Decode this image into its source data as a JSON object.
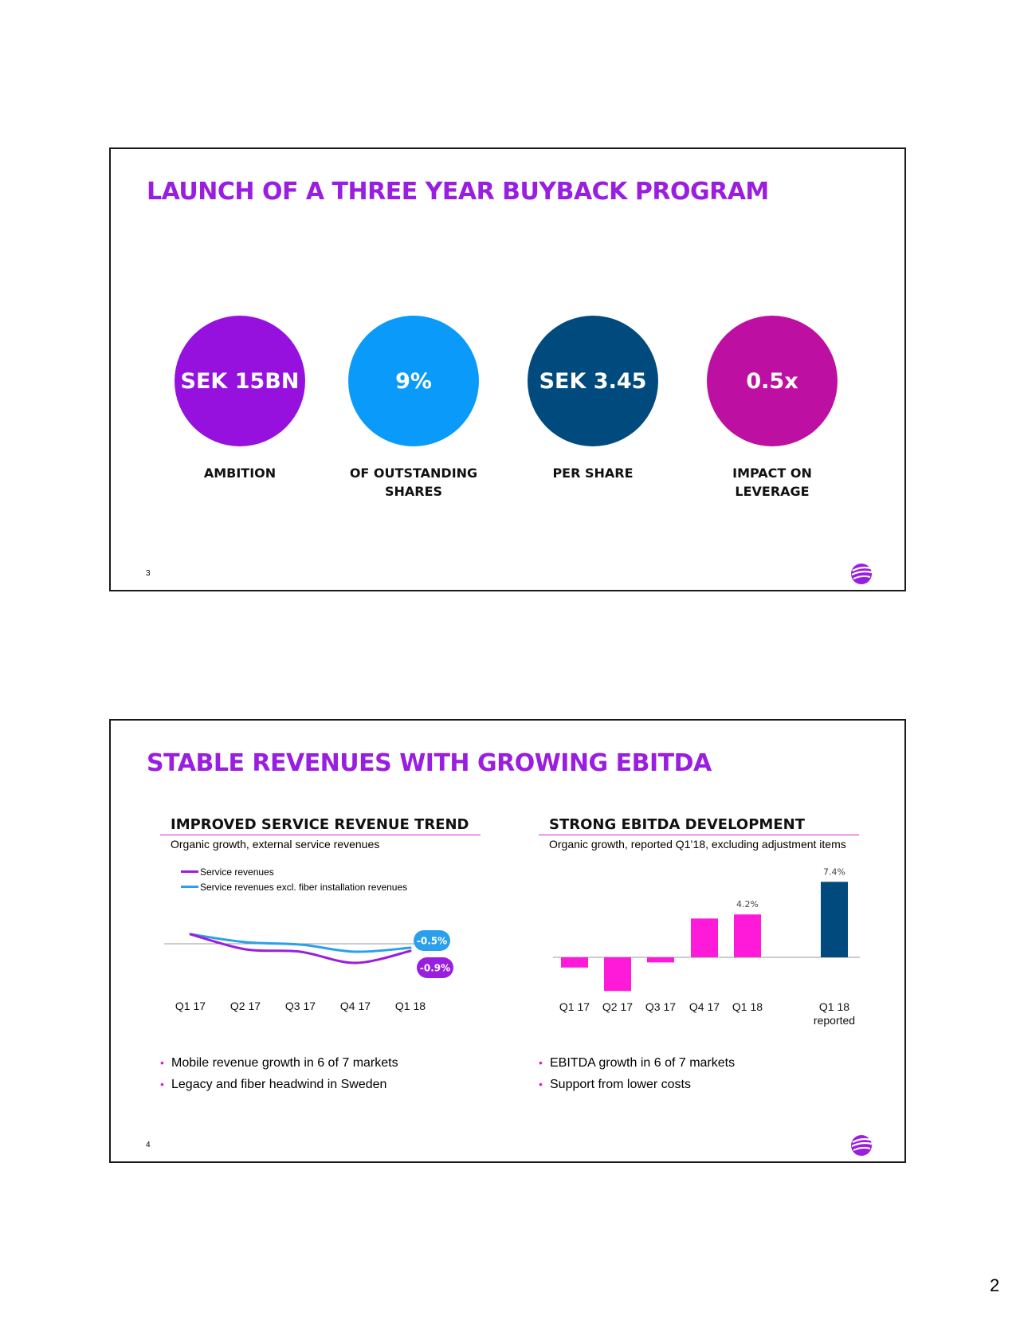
{
  "slide1": {
    "title": "LAUNCH OF A THREE YEAR BUYBACK PROGRAM",
    "number": "3",
    "logo": "telia-logo-icon",
    "kpis": [
      {
        "value": "SEK 15BN",
        "label_lines": [
          "AMBITION"
        ],
        "color": "#9611de"
      },
      {
        "value": "9%",
        "label_lines": [
          "OF OUTSTANDING",
          "SHARES"
        ],
        "color": "#0a9bfa"
      },
      {
        "value": "SEK 3.45",
        "label_lines": [
          "PER SHARE"
        ],
        "color": "#004a7d"
      },
      {
        "value": "0.5x",
        "label_lines": [
          "IMPACT ON",
          "LEVERAGE"
        ],
        "color": "#be0fa3"
      }
    ]
  },
  "slide2": {
    "title": "STABLE REVENUES WITH GROWING EBITDA",
    "number": "4",
    "left": {
      "heading": "IMPROVED SERVICE REVENUE TREND",
      "subtitle": "Organic growth, external service revenues",
      "legend": [
        {
          "label": "Service revenues",
          "color": "#9a1ee0"
        },
        {
          "label": "Service revenues excl. fiber installation revenues",
          "color": "#2ba0ea"
        }
      ],
      "bullets": [
        "Mobile revenue growth in 6 of 7 markets",
        "Legacy and fiber headwind in Sweden"
      ]
    },
    "right": {
      "heading": "STRONG EBITDA DEVELOPMENT",
      "subtitle": "Organic growth, reported Q1’18, excluding adjustment items",
      "bullets": [
        "EBITDA growth in 6 of 7 markets",
        "Support from lower costs"
      ]
    }
  },
  "chart_data": [
    {
      "type": "line",
      "title": "IMPROVED SERVICE REVENUE TREND",
      "categories": [
        "Q1 17",
        "Q2 17",
        "Q3 17",
        "Q4 17",
        "Q1 18"
      ],
      "series": [
        {
          "name": "Service revenues",
          "values": [
            1.2,
            -0.7,
            -1.0,
            -2.4,
            -0.9
          ],
          "color": "#9a1ee0"
        },
        {
          "name": "Service revenues excl. fiber installation revenues",
          "values": [
            1.2,
            0.2,
            -0.1,
            -1.0,
            -0.5
          ],
          "color": "#2ba0ea"
        }
      ],
      "end_labels": [
        "-0.9%",
        "-0.5%"
      ],
      "ylim": [
        -3,
        2
      ]
    },
    {
      "type": "bar",
      "title": "STRONG EBITDA DEVELOPMENT",
      "categories": [
        "Q1 17",
        "Q2 17",
        "Q3 17",
        "Q4 17",
        "Q1 18",
        "Q1 18\nreported"
      ],
      "values": [
        -1.0,
        -3.3,
        -0.5,
        3.8,
        4.2,
        7.4
      ],
      "colors": [
        "#ff19d8",
        "#ff19d8",
        "#ff19d8",
        "#ff19d8",
        "#ff19d8",
        "#004a7d"
      ],
      "data_labels": [
        "",
        "",
        "",
        "",
        "4.2%",
        "7.4%"
      ],
      "ylim": [
        -3.5,
        8
      ]
    }
  ],
  "page_number": "2"
}
